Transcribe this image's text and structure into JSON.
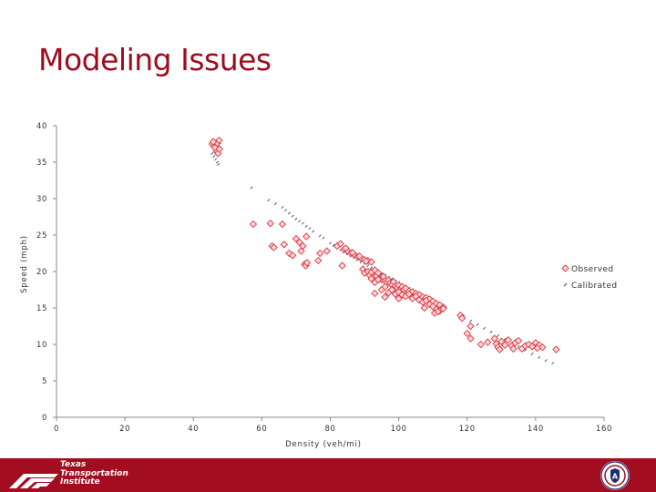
{
  "slide": {
    "title": "Modeling Issues"
  },
  "footer": {
    "logo_text": [
      "Texas",
      "Transportation",
      "Institute"
    ]
  },
  "colors": {
    "title": "#9e0b1f",
    "footer": "#a30d20",
    "observed": "#d9363e",
    "calibrated": "#1f2f6e"
  },
  "chart_data": {
    "type": "scatter",
    "xlabel": "Density (veh/mi)",
    "ylabel": "Speed (mph)",
    "xlim": [
      0,
      160
    ],
    "ylim": [
      0,
      40
    ],
    "x_ticks": [
      0,
      20,
      40,
      60,
      80,
      100,
      120,
      140,
      160
    ],
    "y_ticks": [
      0,
      5,
      10,
      15,
      20,
      25,
      30,
      35,
      40
    ],
    "grid": false,
    "legend_position": "right",
    "series": [
      {
        "name": "Observed",
        "marker": "diamond",
        "color": "#d9363e",
        "points": [
          [
            45.5,
            37.5
          ],
          [
            46,
            37.2
          ],
          [
            46.5,
            36.9
          ],
          [
            47,
            37.6
          ],
          [
            47.5,
            38
          ],
          [
            46.8,
            36.5
          ],
          [
            47.2,
            36.2
          ],
          [
            45.8,
            37.8
          ],
          [
            46.3,
            37
          ],
          [
            47.6,
            36.8
          ],
          [
            57.5,
            26.5
          ],
          [
            62.5,
            26.6
          ],
          [
            66,
            26.5
          ],
          [
            63,
            23.5
          ],
          [
            63.5,
            23.3
          ],
          [
            66.5,
            23.7
          ],
          [
            68,
            22.5
          ],
          [
            69,
            22.2
          ],
          [
            70,
            24.5
          ],
          [
            71,
            24
          ],
          [
            72,
            23.5
          ],
          [
            73,
            24.8
          ],
          [
            71.5,
            22.8
          ],
          [
            77,
            22.5
          ],
          [
            79,
            22.8
          ],
          [
            76.5,
            21.5
          ],
          [
            72.5,
            21
          ],
          [
            72.8,
            20.8
          ],
          [
            73.2,
            21.2
          ],
          [
            82,
            23.5
          ],
          [
            83,
            23.8
          ],
          [
            84,
            23
          ],
          [
            85,
            22.8
          ],
          [
            86,
            22.5
          ],
          [
            87,
            22.3
          ],
          [
            88,
            22
          ],
          [
            89,
            21.8
          ],
          [
            90,
            21.6
          ],
          [
            91,
            21.5
          ],
          [
            92,
            21.3
          ],
          [
            84.5,
            23.2
          ],
          [
            86.5,
            22.6
          ],
          [
            88.5,
            22.1
          ],
          [
            90.5,
            21.4
          ],
          [
            83.5,
            20.8
          ],
          [
            89.5,
            20.3
          ],
          [
            90,
            19.8
          ],
          [
            91,
            20
          ],
          [
            91.5,
            19.5
          ],
          [
            92,
            19.9
          ],
          [
            92.5,
            19.2
          ],
          [
            93,
            20.2
          ],
          [
            93.5,
            19.4
          ],
          [
            94,
            19.8
          ],
          [
            94.5,
            19
          ],
          [
            95,
            18.9
          ],
          [
            95.5,
            19.3
          ],
          [
            96,
            18.7
          ],
          [
            96.5,
            18.5
          ],
          [
            97,
            18.8
          ],
          [
            97.5,
            18.4
          ],
          [
            98,
            18.2
          ],
          [
            98.5,
            18.6
          ],
          [
            99,
            18
          ],
          [
            99.5,
            17.8
          ],
          [
            100,
            18.1
          ],
          [
            100.5,
            17.6
          ],
          [
            101,
            17.9
          ],
          [
            101.5,
            17.5
          ],
          [
            102,
            17.7
          ],
          [
            103,
            17.3
          ],
          [
            104,
            17.2
          ],
          [
            105,
            17
          ],
          [
            106,
            16.8
          ],
          [
            107,
            16.5
          ],
          [
            108,
            16.4
          ],
          [
            109,
            16.2
          ],
          [
            110,
            15.9
          ],
          [
            111,
            15.6
          ],
          [
            112,
            15.4
          ],
          [
            113,
            15.1
          ],
          [
            92,
            19
          ],
          [
            93,
            18.5
          ],
          [
            94,
            18.9
          ],
          [
            95,
            17.5
          ],
          [
            96,
            17.9
          ],
          [
            97,
            17.1
          ],
          [
            98,
            17.5
          ],
          [
            99,
            16.9
          ],
          [
            100,
            17.2
          ],
          [
            101,
            16.8
          ],
          [
            102,
            16.6
          ],
          [
            103,
            16.9
          ],
          [
            104,
            16.3
          ],
          [
            105,
            16.6
          ],
          [
            106,
            16.1
          ],
          [
            107,
            15.8
          ],
          [
            108,
            16
          ],
          [
            109,
            15.5
          ],
          [
            110,
            15.2
          ],
          [
            111,
            14.8
          ],
          [
            112,
            14.6
          ],
          [
            113,
            14.9
          ],
          [
            107.5,
            15
          ],
          [
            110.5,
            14.3
          ],
          [
            111.5,
            14.5
          ],
          [
            93,
            17
          ],
          [
            96,
            16.5
          ],
          [
            100,
            16.3
          ],
          [
            118,
            14
          ],
          [
            118.5,
            13.6
          ],
          [
            121,
            12.5
          ],
          [
            120,
            11.5
          ],
          [
            121,
            10.8
          ],
          [
            124,
            10
          ],
          [
            126,
            10.3
          ],
          [
            128,
            10.8
          ],
          [
            128.5,
            10.1
          ],
          [
            129,
            9.6
          ],
          [
            130,
            10.4
          ],
          [
            131,
            9.9
          ],
          [
            132,
            10.6
          ],
          [
            133,
            9.8
          ],
          [
            134,
            10.2
          ],
          [
            135,
            10.5
          ],
          [
            136,
            9.4
          ],
          [
            137,
            9.8
          ],
          [
            138,
            10
          ],
          [
            139,
            9.7
          ],
          [
            140,
            10.2
          ],
          [
            141,
            9.9
          ],
          [
            142,
            9.6
          ],
          [
            146,
            9.3
          ],
          [
            129.5,
            9.3
          ],
          [
            133.5,
            9.4
          ],
          [
            140.5,
            9.5
          ]
        ]
      },
      {
        "name": "Calibrated",
        "marker": "dash",
        "color": "#1f2f6e",
        "points": [
          [
            45.5,
            36.2
          ],
          [
            46,
            35.8
          ],
          [
            46.5,
            35.4
          ],
          [
            47,
            35
          ],
          [
            47.3,
            34.7
          ],
          [
            57,
            31.5
          ],
          [
            62,
            29.8
          ],
          [
            64,
            29.3
          ],
          [
            66,
            28.8
          ],
          [
            67,
            28.4
          ],
          [
            68,
            28
          ],
          [
            69,
            27.6
          ],
          [
            70,
            27.2
          ],
          [
            71,
            26.9
          ],
          [
            72,
            26.6
          ],
          [
            73,
            26.2
          ],
          [
            74,
            25.9
          ],
          [
            75,
            25.5
          ],
          [
            77,
            24.9
          ],
          [
            78,
            24.6
          ],
          [
            80,
            23.9
          ],
          [
            81,
            23.6
          ],
          [
            82,
            23.3
          ],
          [
            83,
            23
          ],
          [
            84,
            22.7
          ],
          [
            85,
            22.4
          ],
          [
            86,
            22.1
          ],
          [
            87,
            21.9
          ],
          [
            88,
            21.6
          ],
          [
            89,
            21.3
          ],
          [
            90,
            21.1
          ],
          [
            91,
            20.8
          ],
          [
            92,
            20.5
          ],
          [
            93,
            20.3
          ],
          [
            94,
            20
          ],
          [
            95,
            19.7
          ],
          [
            96,
            19.5
          ],
          [
            97,
            19.2
          ],
          [
            98,
            19
          ],
          [
            99,
            18.7
          ],
          [
            100,
            18.5
          ],
          [
            101,
            18.2
          ],
          [
            102,
            18
          ],
          [
            103,
            17.7
          ],
          [
            104,
            17.5
          ],
          [
            105,
            17.2
          ],
          [
            106,
            17
          ],
          [
            107,
            16.7
          ],
          [
            108,
            16.5
          ],
          [
            109,
            16.2
          ],
          [
            110,
            16
          ],
          [
            111,
            15.7
          ],
          [
            112,
            15.5
          ],
          [
            113,
            15.2
          ],
          [
            118,
            14.1
          ],
          [
            119,
            13.8
          ],
          [
            121,
            13.2
          ],
          [
            123,
            12.7
          ],
          [
            125,
            12.2
          ],
          [
            127,
            11.7
          ],
          [
            129,
            11.2
          ],
          [
            131,
            10.7
          ],
          [
            133,
            10.2
          ],
          [
            135,
            9.7
          ],
          [
            137,
            9.2
          ],
          [
            139,
            8.7
          ],
          [
            141,
            8.2
          ],
          [
            143,
            7.8
          ],
          [
            145,
            7.4
          ]
        ]
      }
    ]
  }
}
